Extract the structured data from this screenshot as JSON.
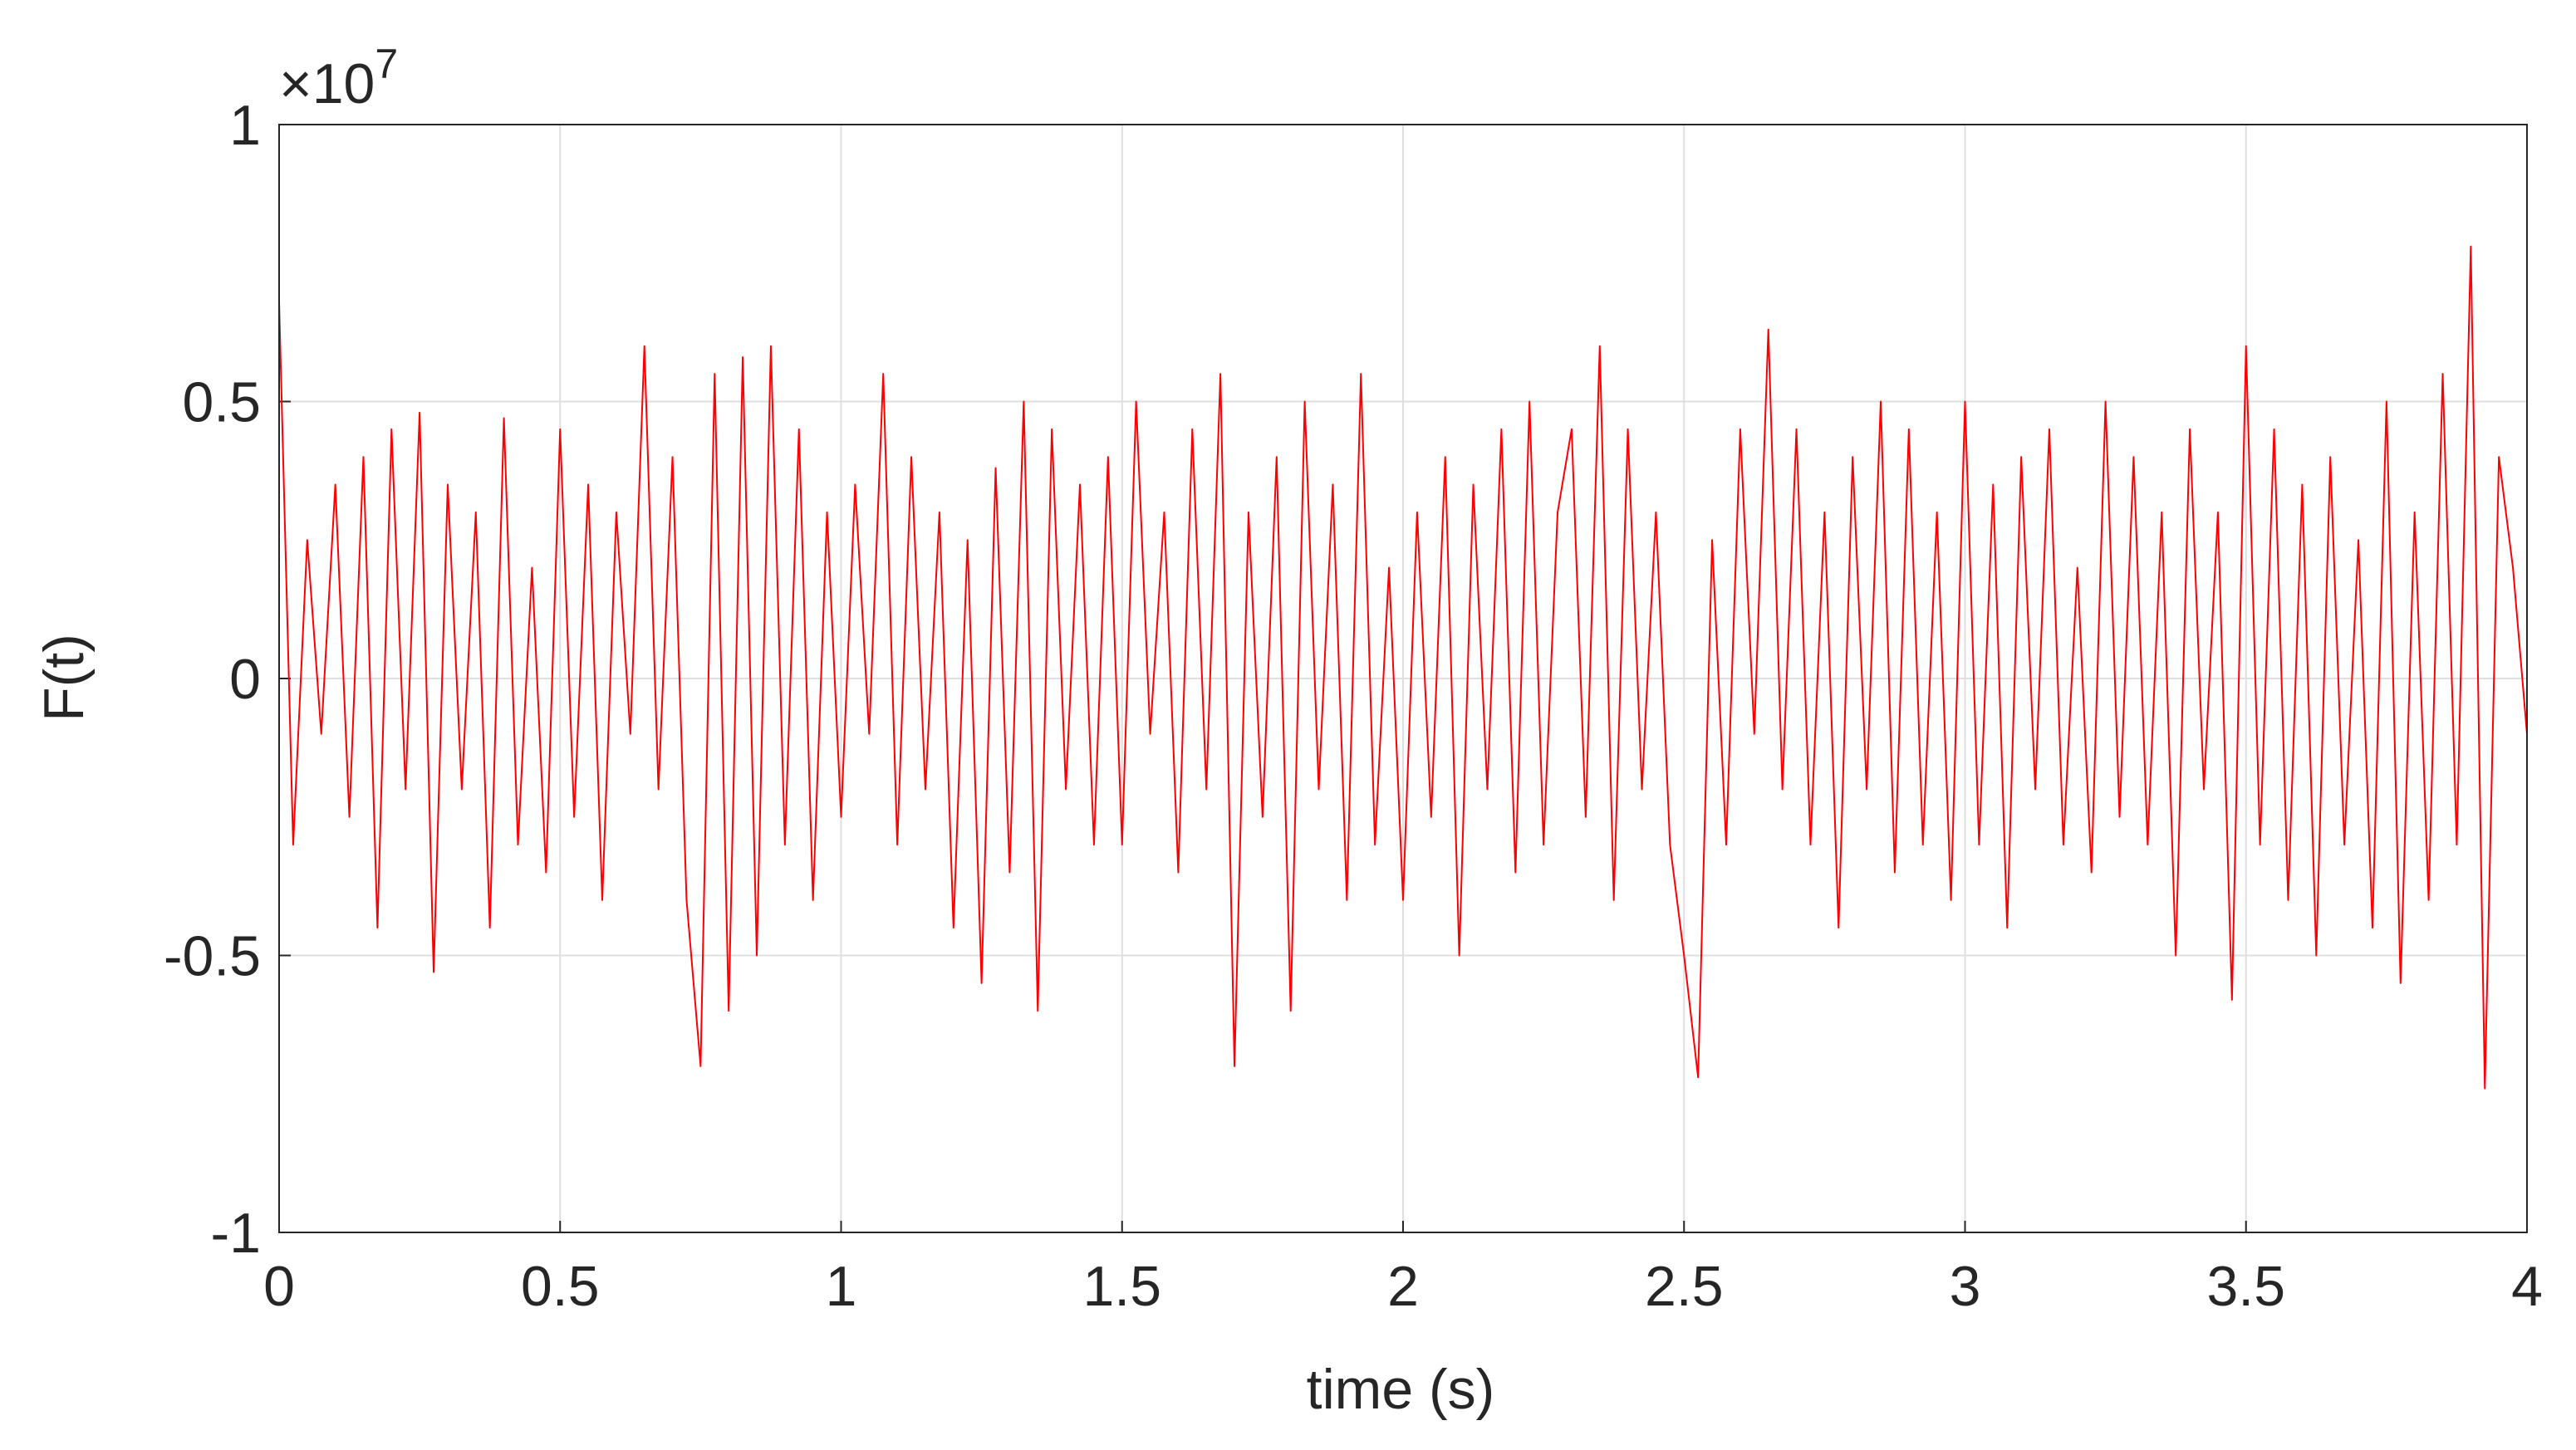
{
  "chart_data": {
    "type": "line",
    "xlabel": "time (s)",
    "ylabel": "F(t)",
    "y_exponent_base": "×10",
    "y_exponent": "7",
    "xlim": [
      0,
      4
    ],
    "xticks": [
      0,
      0.5,
      1,
      1.5,
      2,
      2.5,
      3,
      3.5,
      4
    ],
    "ylim": [
      -1,
      1
    ],
    "yticks": [
      -1,
      -0.5,
      0,
      0.5,
      1
    ],
    "grid": true,
    "x": [
      0,
      0.025,
      0.05,
      0.075,
      0.1,
      0.125,
      0.15,
      0.175,
      0.2,
      0.225,
      0.25,
      0.275,
      0.3,
      0.325,
      0.35,
      0.375,
      0.4,
      0.425,
      0.45,
      0.475,
      0.5,
      0.525,
      0.55,
      0.575,
      0.6,
      0.625,
      0.65,
      0.675,
      0.7,
      0.725,
      0.75,
      0.775,
      0.8,
      0.825,
      0.85,
      0.875,
      0.9,
      0.925,
      0.95,
      0.975,
      1,
      1.025,
      1.05,
      1.075,
      1.1,
      1.125,
      1.15,
      1.175,
      1.2,
      1.225,
      1.25,
      1.275,
      1.3,
      1.325,
      1.35,
      1.375,
      1.4,
      1.425,
      1.45,
      1.475,
      1.5,
      1.525,
      1.55,
      1.575,
      1.6,
      1.625,
      1.65,
      1.675,
      1.7,
      1.725,
      1.75,
      1.775,
      1.8,
      1.825,
      1.85,
      1.875,
      1.9,
      1.925,
      1.95,
      1.975,
      2,
      2.025,
      2.05,
      2.075,
      2.1,
      2.125,
      2.15,
      2.175,
      2.2,
      2.225,
      2.25,
      2.275,
      2.3,
      2.325,
      2.35,
      2.375,
      2.4,
      2.425,
      2.45,
      2.475,
      2.5,
      2.525,
      2.55,
      2.575,
      2.6,
      2.625,
      2.65,
      2.675,
      2.7,
      2.725,
      2.75,
      2.775,
      2.8,
      2.825,
      2.85,
      2.875,
      2.9,
      2.925,
      2.95,
      2.975,
      3,
      3.025,
      3.05,
      3.075,
      3.1,
      3.125,
      3.15,
      3.175,
      3.2,
      3.225,
      3.25,
      3.275,
      3.3,
      3.325,
      3.35,
      3.375,
      3.4,
      3.425,
      3.45,
      3.475,
      3.5,
      3.525,
      3.55,
      3.575,
      3.6,
      3.625,
      3.65,
      3.675,
      3.7,
      3.725,
      3.75,
      3.775,
      3.8,
      3.825,
      3.85,
      3.875,
      3.9,
      3.925,
      3.95,
      3.975,
      4
    ],
    "series": [
      {
        "color": "#ff0000",
        "values": [
          0.68,
          -0.3,
          0.25,
          -0.1,
          0.35,
          -0.25,
          0.4,
          -0.45,
          0.45,
          -0.2,
          0.48,
          -0.53,
          0.35,
          -0.2,
          0.3,
          -0.45,
          0.47,
          -0.3,
          0.2,
          -0.35,
          0.45,
          -0.25,
          0.35,
          -0.4,
          0.3,
          -0.1,
          0.6,
          -0.2,
          0.4,
          -0.4,
          -0.7,
          0.55,
          -0.6,
          0.58,
          -0.5,
          0.6,
          -0.3,
          0.45,
          -0.4,
          0.3,
          -0.25,
          0.35,
          -0.1,
          0.55,
          -0.3,
          0.4,
          -0.2,
          0.3,
          -0.45,
          0.25,
          -0.55,
          0.38,
          -0.35,
          0.5,
          -0.6,
          0.45,
          -0.2,
          0.35,
          -0.3,
          0.4,
          -0.3,
          0.5,
          -0.1,
          0.3,
          -0.35,
          0.45,
          -0.2,
          0.55,
          -0.7,
          0.3,
          -0.25,
          0.4,
          -0.6,
          0.5,
          -0.2,
          0.35,
          -0.4,
          0.55,
          -0.3,
          0.2,
          -0.4,
          0.3,
          -0.25,
          0.4,
          -0.5,
          0.35,
          -0.2,
          0.45,
          -0.35,
          0.5,
          -0.3,
          0.3,
          0.45,
          -0.25,
          0.6,
          -0.4,
          0.45,
          -0.2,
          0.3,
          -0.3,
          -0.5,
          -0.72,
          0.25,
          -0.3,
          0.45,
          -0.1,
          0.63,
          -0.2,
          0.45,
          -0.3,
          0.3,
          -0.45,
          0.4,
          -0.2,
          0.5,
          -0.35,
          0.45,
          -0.3,
          0.3,
          -0.4,
          0.5,
          -0.3,
          0.35,
          -0.45,
          0.4,
          -0.2,
          0.45,
          -0.3,
          0.2,
          -0.35,
          0.5,
          -0.25,
          0.4,
          -0.3,
          0.3,
          -0.5,
          0.45,
          -0.2,
          0.3,
          -0.58,
          0.6,
          -0.3,
          0.45,
          -0.4,
          0.35,
          -0.5,
          0.4,
          -0.3,
          0.25,
          -0.45,
          0.5,
          -0.55,
          0.3,
          -0.4,
          0.55,
          -0.3,
          0.78,
          -0.74,
          0.4,
          0.2,
          -0.1
        ]
      }
    ]
  }
}
